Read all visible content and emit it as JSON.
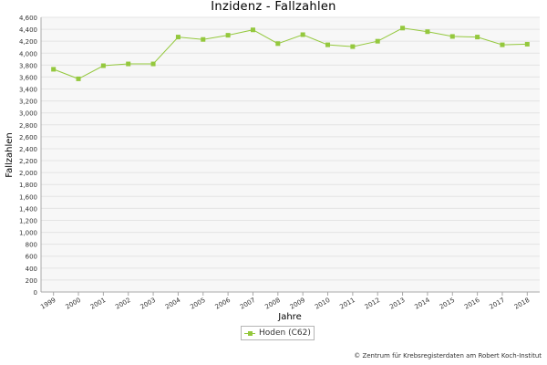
{
  "chart_data": {
    "type": "line",
    "title": "Inzidenz - Fallzahlen",
    "xlabel": "Jahre",
    "ylabel": "Fallzahlen",
    "x": [
      "1999",
      "2000",
      "2001",
      "2002",
      "2003",
      "2004",
      "2005",
      "2006",
      "2007",
      "2008",
      "2009",
      "2010",
      "2011",
      "2012",
      "2013",
      "2014",
      "2015",
      "2016",
      "2017",
      "2018"
    ],
    "series": [
      {
        "name": "Hoden (C62)",
        "color": "#94c83d",
        "values": [
          3730,
          3570,
          3790,
          3820,
          3820,
          4270,
          4230,
          4300,
          4390,
          4160,
          4310,
          4140,
          4110,
          4200,
          4420,
          4360,
          4280,
          4270,
          4140,
          4150
        ]
      }
    ],
    "ylim": [
      0,
      4600
    ],
    "yticks": [
      "0",
      "200",
      "400",
      "600",
      "800",
      "1,000",
      "1,200",
      "1,400",
      "1,600",
      "1,800",
      "2,000",
      "2,200",
      "2,400",
      "2,600",
      "2,800",
      "3,000",
      "3,200",
      "3,400",
      "3,600",
      "3,800",
      "4,000",
      "4,200",
      "4,400",
      "4,600"
    ],
    "grid": true,
    "legend": "bottom-center"
  },
  "credit": "© Zentrum für Krebsregisterdaten am Robert Koch-Institut"
}
